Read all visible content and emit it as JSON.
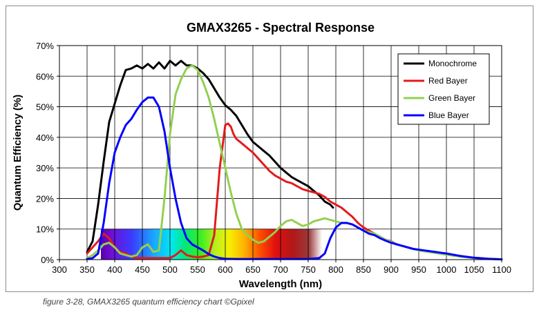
{
  "chart_data": {
    "type": "line",
    "title": "GMAX3265 - Spectral Response",
    "xlabel": "Wavelength (nm)",
    "ylabel": "Quantum Efficiency (%)",
    "xlim": [
      300,
      1100
    ],
    "ylim": [
      0,
      70
    ],
    "x_ticks": [
      300,
      350,
      400,
      450,
      500,
      550,
      600,
      650,
      700,
      750,
      800,
      850,
      900,
      950,
      1000,
      1050,
      1100
    ],
    "x_tick_labels": [
      "300",
      "350",
      "400",
      "450",
      "500",
      "550",
      "600",
      "650",
      "700",
      "750",
      "800",
      "850",
      "900",
      "950",
      "1000",
      "1050",
      "1100"
    ],
    "y_ticks": [
      0,
      10,
      20,
      30,
      40,
      50,
      60,
      70
    ],
    "y_tick_labels": [
      "0%",
      "10%",
      "20%",
      "30%",
      "40%",
      "50%",
      "60%",
      "70%"
    ],
    "grid": true,
    "legend_position": "top-right",
    "visible_spectrum_band": {
      "x_range": [
        375,
        775
      ],
      "y_range": [
        0,
        10
      ]
    },
    "series": [
      {
        "name": "Monochrome",
        "color": "#000000",
        "points": [
          [
            350,
            2.5
          ],
          [
            360,
            6
          ],
          [
            370,
            18
          ],
          [
            380,
            32
          ],
          [
            390,
            45
          ],
          [
            400,
            51
          ],
          [
            410,
            57
          ],
          [
            420,
            62
          ],
          [
            430,
            62.5
          ],
          [
            440,
            63.5
          ],
          [
            450,
            62.5
          ],
          [
            460,
            64
          ],
          [
            470,
            62.5
          ],
          [
            480,
            64.5
          ],
          [
            490,
            62.5
          ],
          [
            500,
            65
          ],
          [
            510,
            63.5
          ],
          [
            520,
            65
          ],
          [
            530,
            63.5
          ],
          [
            540,
            63.5
          ],
          [
            550,
            62.5
          ],
          [
            560,
            61
          ],
          [
            570,
            59
          ],
          [
            580,
            56
          ],
          [
            590,
            53
          ],
          [
            600,
            50.5
          ],
          [
            610,
            49
          ],
          [
            620,
            47
          ],
          [
            630,
            44
          ],
          [
            640,
            41
          ],
          [
            650,
            38.5
          ],
          [
            660,
            37
          ],
          [
            670,
            35.5
          ],
          [
            680,
            34
          ],
          [
            690,
            32
          ],
          [
            700,
            30
          ],
          [
            710,
            28.5
          ],
          [
            720,
            27
          ],
          [
            730,
            26
          ],
          [
            740,
            25
          ],
          [
            750,
            24
          ],
          [
            760,
            22.5
          ],
          [
            770,
            21
          ],
          [
            780,
            19
          ],
          [
            790,
            18
          ],
          [
            795,
            17
          ]
        ]
      },
      {
        "name": "Red Bayer",
        "color": "#e31a1c",
        "points": [
          [
            350,
            2
          ],
          [
            360,
            4
          ],
          [
            370,
            6
          ],
          [
            380,
            8.5
          ],
          [
            390,
            7
          ],
          [
            400,
            4
          ],
          [
            410,
            2.5
          ],
          [
            420,
            2
          ],
          [
            430,
            1
          ],
          [
            440,
            0.5
          ],
          [
            450,
            0.5
          ],
          [
            460,
            0.5
          ],
          [
            470,
            0.5
          ],
          [
            480,
            0.5
          ],
          [
            490,
            0.5
          ],
          [
            500,
            0.5
          ],
          [
            510,
            1.5
          ],
          [
            520,
            3
          ],
          [
            530,
            1.5
          ],
          [
            540,
            1
          ],
          [
            550,
            0.8
          ],
          [
            560,
            1
          ],
          [
            570,
            1.5
          ],
          [
            580,
            8
          ],
          [
            590,
            30
          ],
          [
            600,
            44
          ],
          [
            605,
            44.5
          ],
          [
            610,
            43.5
          ],
          [
            615,
            41
          ],
          [
            620,
            39.5
          ],
          [
            630,
            38
          ],
          [
            640,
            36.5
          ],
          [
            650,
            35
          ],
          [
            660,
            33
          ],
          [
            670,
            31
          ],
          [
            680,
            29
          ],
          [
            690,
            27.5
          ],
          [
            700,
            26.5
          ],
          [
            710,
            25.5
          ],
          [
            720,
            25
          ],
          [
            730,
            24
          ],
          [
            740,
            23
          ],
          [
            750,
            22.5
          ],
          [
            760,
            22
          ],
          [
            770,
            21.5
          ],
          [
            780,
            20.5
          ],
          [
            790,
            19
          ],
          [
            800,
            18
          ],
          [
            810,
            17
          ],
          [
            820,
            15.5
          ],
          [
            830,
            14
          ],
          [
            840,
            12
          ],
          [
            850,
            10.5
          ],
          [
            860,
            9.5
          ],
          [
            870,
            8.5
          ],
          [
            880,
            7.5
          ],
          [
            890,
            6.5
          ],
          [
            900,
            6
          ],
          [
            910,
            5
          ],
          [
            920,
            4.5
          ],
          [
            930,
            4
          ],
          [
            940,
            3.5
          ],
          [
            950,
            3.2
          ],
          [
            975,
            2.5
          ],
          [
            1000,
            1.8
          ],
          [
            1025,
            1.2
          ],
          [
            1050,
            0.6
          ],
          [
            1075,
            0.3
          ],
          [
            1100,
            0.1
          ]
        ]
      },
      {
        "name": "Green Bayer",
        "color": "#92d050",
        "points": [
          [
            350,
            0.5
          ],
          [
            360,
            1.5
          ],
          [
            370,
            3
          ],
          [
            380,
            5
          ],
          [
            390,
            5.5
          ],
          [
            400,
            4
          ],
          [
            410,
            2
          ],
          [
            420,
            1.5
          ],
          [
            430,
            1
          ],
          [
            440,
            1.5
          ],
          [
            450,
            4
          ],
          [
            460,
            5
          ],
          [
            470,
            2.5
          ],
          [
            480,
            3
          ],
          [
            490,
            20
          ],
          [
            500,
            41
          ],
          [
            510,
            54
          ],
          [
            520,
            59
          ],
          [
            530,
            62.5
          ],
          [
            540,
            63.5
          ],
          [
            550,
            62
          ],
          [
            560,
            58
          ],
          [
            570,
            53
          ],
          [
            580,
            46
          ],
          [
            590,
            38
          ],
          [
            600,
            30
          ],
          [
            610,
            22
          ],
          [
            620,
            15
          ],
          [
            630,
            10
          ],
          [
            640,
            8
          ],
          [
            650,
            6.5
          ],
          [
            660,
            5.5
          ],
          [
            670,
            6
          ],
          [
            680,
            7.5
          ],
          [
            690,
            9
          ],
          [
            700,
            11
          ],
          [
            710,
            12.5
          ],
          [
            720,
            13
          ],
          [
            730,
            12
          ],
          [
            740,
            11
          ],
          [
            750,
            11.5
          ],
          [
            760,
            12.5
          ],
          [
            770,
            13
          ],
          [
            780,
            13.5
          ],
          [
            790,
            13
          ],
          [
            800,
            12.5
          ],
          [
            810,
            12
          ],
          [
            820,
            12
          ],
          [
            830,
            11.5
          ],
          [
            840,
            10.5
          ],
          [
            850,
            9.5
          ],
          [
            860,
            9
          ],
          [
            870,
            8.5
          ],
          [
            880,
            7.5
          ],
          [
            890,
            6.5
          ],
          [
            900,
            5.8
          ],
          [
            910,
            5
          ],
          [
            920,
            4.5
          ],
          [
            930,
            4
          ],
          [
            940,
            3.5
          ],
          [
            950,
            3
          ],
          [
            975,
            2.3
          ],
          [
            1000,
            1.6
          ],
          [
            1025,
            1
          ],
          [
            1050,
            0.5
          ],
          [
            1075,
            0.2
          ],
          [
            1100,
            0.1
          ]
        ]
      },
      {
        "name": "Blue Bayer",
        "color": "#0000ff",
        "points": [
          [
            350,
            0.2
          ],
          [
            360,
            0.5
          ],
          [
            370,
            2
          ],
          [
            380,
            12
          ],
          [
            390,
            25
          ],
          [
            400,
            35
          ],
          [
            410,
            40
          ],
          [
            420,
            44
          ],
          [
            430,
            46
          ],
          [
            440,
            49
          ],
          [
            450,
            51.5
          ],
          [
            460,
            53
          ],
          [
            470,
            53
          ],
          [
            480,
            50
          ],
          [
            490,
            42
          ],
          [
            500,
            30
          ],
          [
            510,
            20
          ],
          [
            520,
            12
          ],
          [
            530,
            7
          ],
          [
            540,
            5
          ],
          [
            550,
            4
          ],
          [
            560,
            3
          ],
          [
            570,
            1.8
          ],
          [
            580,
            1
          ],
          [
            590,
            0.5
          ],
          [
            600,
            0.3
          ],
          [
            620,
            0.2
          ],
          [
            650,
            0.2
          ],
          [
            700,
            0.2
          ],
          [
            750,
            0.2
          ],
          [
            770,
            0.5
          ],
          [
            780,
            2
          ],
          [
            790,
            7
          ],
          [
            800,
            10.5
          ],
          [
            810,
            12
          ],
          [
            820,
            12
          ],
          [
            830,
            11.5
          ],
          [
            840,
            10.5
          ],
          [
            850,
            9.5
          ],
          [
            860,
            8.5
          ],
          [
            870,
            8
          ],
          [
            880,
            7
          ],
          [
            890,
            6.2
          ],
          [
            900,
            5.5
          ],
          [
            920,
            4.5
          ],
          [
            940,
            3.5
          ],
          [
            960,
            3
          ],
          [
            980,
            2.5
          ],
          [
            1000,
            2
          ],
          [
            1025,
            1.2
          ],
          [
            1050,
            0.6
          ],
          [
            1075,
            0.3
          ],
          [
            1100,
            0.1
          ]
        ]
      }
    ]
  },
  "caption": "figure 3-28, GMAX3265 quantum efficiency chart ©Gpixel"
}
